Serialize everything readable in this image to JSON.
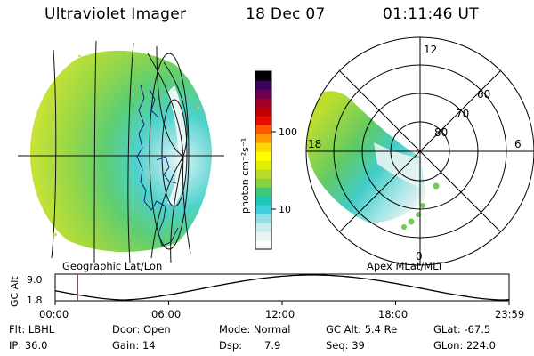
{
  "header": {
    "instrument": "Ultraviolet Imager",
    "date": "18 Dec 07",
    "time": "01:11:46 UT"
  },
  "left_panel": {
    "caption": "Geographic Lat/Lon"
  },
  "right_panel": {
    "caption": "Apex MLat/MLT",
    "mlt_labels": {
      "top": "12",
      "left": "18",
      "right": "6",
      "bottom": "0"
    },
    "mlat_labels": [
      "60",
      "70",
      "80"
    ]
  },
  "colorbar": {
    "unit_label": "photon cm⁻²s⁻¹",
    "ticks": [
      "100",
      "10"
    ],
    "colors": [
      "#ffffff",
      "#e8f4f2",
      "#c8ecea",
      "#8fe0e4",
      "#41d0e0",
      "#20c8b4",
      "#3cc878",
      "#88d240",
      "#b8dc28",
      "#e0ee00",
      "#ffff00",
      "#ffd800",
      "#ff9a00",
      "#ff5a00",
      "#e80a00",
      "#c00000",
      "#a00028",
      "#6e0050",
      "#3c0060",
      "#000000"
    ]
  },
  "alt_plot": {
    "ylabel": "GC Alt",
    "ymax": "9.0",
    "ymin": "1.8",
    "xticks": [
      "00:00",
      "06:00",
      "12:00",
      "18:00",
      "23:59"
    ],
    "marker_hour": 1.196
  },
  "info": {
    "row1": {
      "flt": "Flt: LBHL",
      "door": "Door: Open",
      "mode": "Mode: Normal",
      "gcalt": "GC Alt: 5.4 Re",
      "glat": "GLat: -67.5"
    },
    "row2": {
      "ip": "IP: 36.0",
      "gain": "Gain: 14",
      "dsp_label": "Dsp:",
      "dsp_value": "7.9",
      "seq": "Seq: 39",
      "glon": "GLon: 224.0"
    }
  }
}
